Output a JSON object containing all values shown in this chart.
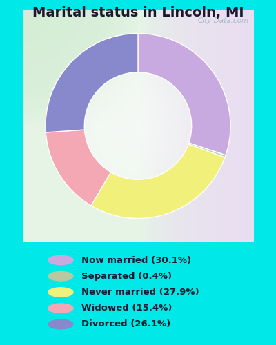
{
  "title": "Marital status in Lincoln, MI",
  "title_fontsize": 14,
  "slices": [
    30.1,
    0.4,
    27.9,
    15.4,
    26.1
  ],
  "labels": [
    "Now married (30.1%)",
    "Separated (0.4%)",
    "Never married (27.9%)",
    "Widowed (15.4%)",
    "Divorced (26.1%)"
  ],
  "colors": [
    "#c9aae0",
    "#b8d4a8",
    "#f0f07a",
    "#f4a8b4",
    "#8888cc"
  ],
  "legend_colors": [
    "#c9aae0",
    "#b8c8a0",
    "#f0f07a",
    "#f4a8b4",
    "#8888cc"
  ],
  "bg_color": "#00e8e8",
  "watermark": "City-Data.com",
  "donut_width": 0.42,
  "start_angle": 90
}
